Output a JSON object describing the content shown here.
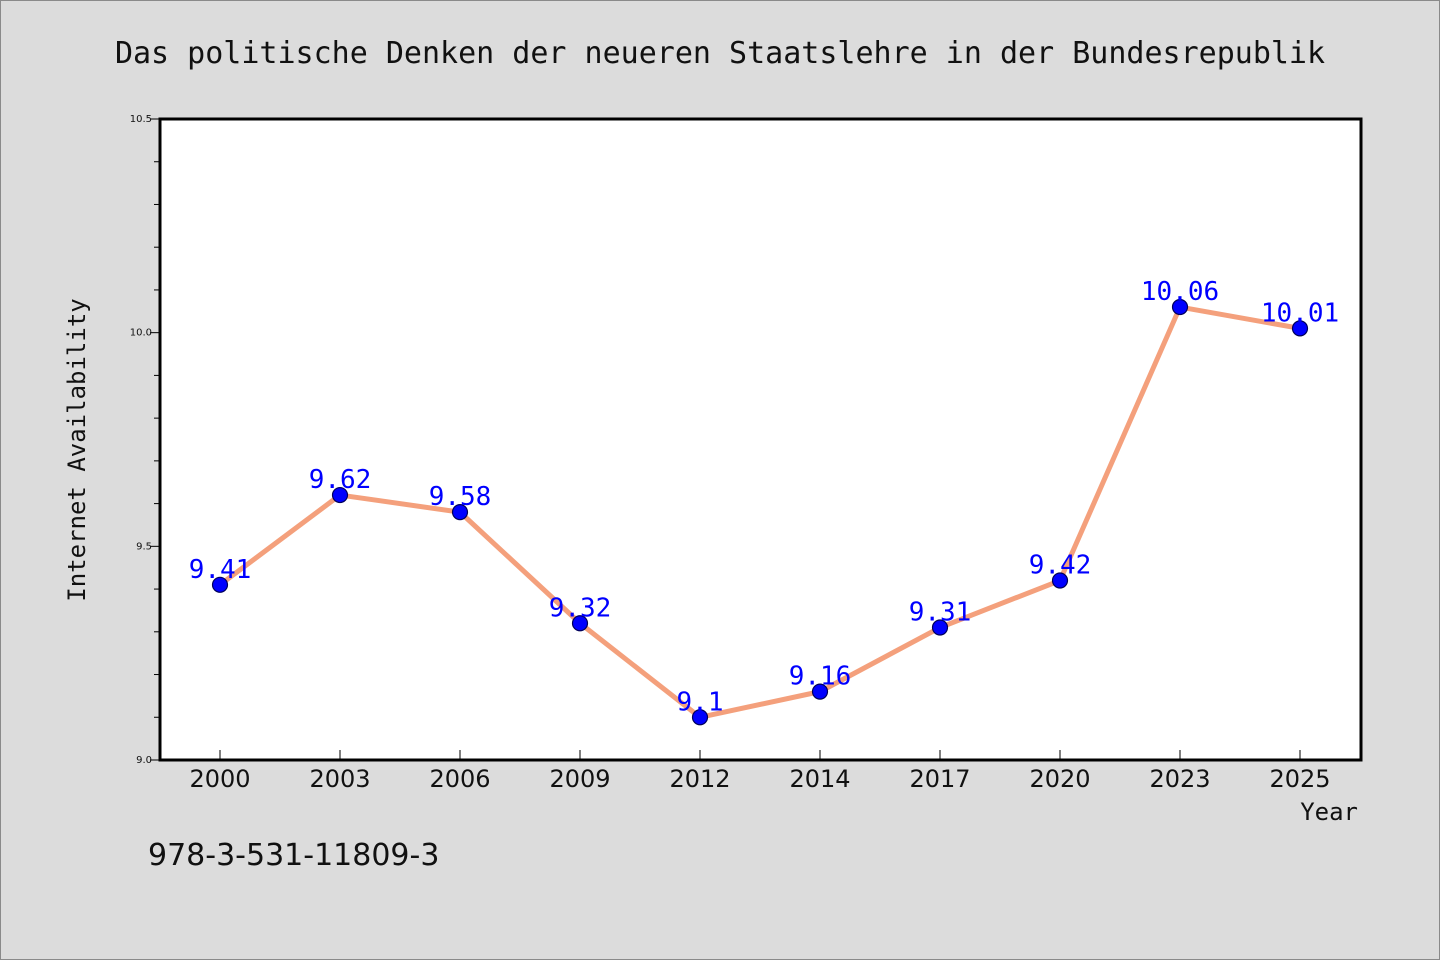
{
  "chart_data": {
    "type": "line",
    "title": "Das politische Denken der neueren Staatslehre in der Bundesrepublik",
    "xlabel": "Year",
    "ylabel": "Internet Availability",
    "categories": [
      "2000",
      "2003",
      "2006",
      "2009",
      "2012",
      "2014",
      "2017",
      "2020",
      "2023",
      "2025"
    ],
    "series": [
      {
        "values": [
          9.41,
          9.62,
          9.58,
          9.32,
          9.1,
          9.16,
          9.31,
          9.42,
          10.06,
          10.01
        ]
      }
    ],
    "data_labels": [
      "9.41",
      "9.62",
      "9.58",
      "9.32",
      "9.1",
      "9.16",
      "9.31",
      "9.42",
      "10.06",
      "10.01"
    ],
    "ylim": [
      9.0,
      10.5
    ],
    "y_ticks": [
      "9.0",
      "9.5",
      "10.0",
      "10.5"
    ],
    "grid": false,
    "colors": {
      "line": "#f4a07c",
      "marker": "#0000ff",
      "marker_edge": "#00005a",
      "data_label": "#0000ff",
      "plot_background": "#ffffff",
      "page_background": "#dcdcdc"
    }
  },
  "footer": {
    "isbn": "978-3-531-11809-3"
  }
}
